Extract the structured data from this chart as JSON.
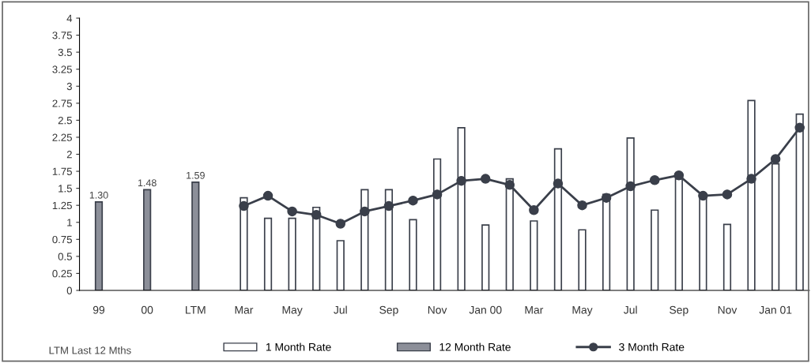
{
  "chart_data": {
    "type": "bar",
    "categories": [
      "99",
      null,
      "00",
      null,
      "LTM",
      null,
      "Mar",
      null,
      "May",
      null,
      "Jul",
      null,
      "Sep",
      null,
      "Nov",
      null,
      "Jan 00",
      null,
      "Mar",
      null,
      "May",
      null,
      "Jul",
      null,
      "Sep",
      null,
      "Nov",
      null,
      "Jan 01",
      null
    ],
    "series": [
      {
        "name": "1 Month Rate",
        "color": "#ffffff",
        "values": [
          null,
          null,
          null,
          null,
          null,
          null,
          1.36,
          1.06,
          1.06,
          1.22,
          0.73,
          1.48,
          1.48,
          1.04,
          1.93,
          2.39,
          0.96,
          1.64,
          1.02,
          2.08,
          0.89,
          1.41,
          2.24,
          1.18,
          1.64,
          1.35,
          0.97,
          2.79,
          1.86,
          2.59
        ]
      },
      {
        "name": "12 Month Rate",
        "color": "#8c8f99",
        "values": [
          1.3,
          null,
          1.48,
          null,
          1.59,
          null,
          null,
          null,
          null,
          null,
          null,
          null,
          null,
          null,
          null,
          null,
          null,
          null,
          null,
          null,
          null,
          null,
          null,
          null,
          null,
          null,
          null,
          null,
          null,
          null
        ],
        "value_labels": [
          "1.30",
          null,
          "1.48",
          null,
          "1.59",
          null,
          null,
          null,
          null,
          null,
          null,
          null,
          null,
          null,
          null,
          null,
          null,
          null,
          null,
          null,
          null,
          null,
          null,
          null,
          null,
          null,
          null,
          null,
          null,
          null
        ]
      },
      {
        "name": "3 Month Rate",
        "type": "line",
        "color": "#3a3f4a",
        "marker": "circle",
        "values": [
          null,
          null,
          null,
          null,
          null,
          null,
          1.24,
          1.39,
          1.16,
          1.11,
          0.98,
          1.16,
          1.24,
          1.32,
          1.41,
          1.61,
          1.64,
          1.55,
          1.18,
          1.57,
          1.25,
          1.36,
          1.53,
          1.62,
          1.69,
          1.39,
          1.41,
          1.64,
          1.93,
          2.39
        ]
      }
    ],
    "ylim": [
      0,
      4
    ],
    "yticks": [
      0,
      0.25,
      0.5,
      0.75,
      1,
      1.25,
      1.5,
      1.75,
      2,
      2.25,
      2.5,
      2.75,
      3,
      3.25,
      3.5,
      3.75,
      4
    ],
    "grid": false,
    "legend": "bottom",
    "annotations": [
      "LTM Last 12 Mths"
    ]
  }
}
